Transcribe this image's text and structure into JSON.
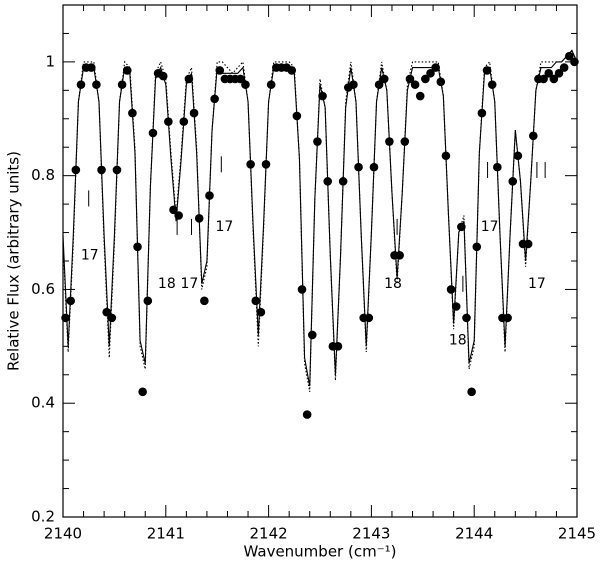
{
  "chart_data": {
    "type": "line",
    "x_label": "Wavenumber (cm⁻¹)",
    "y_label": "Relative Flux (arbitrary units)",
    "xlim": [
      2140,
      2145
    ],
    "ylim": [
      0.2,
      1.1
    ],
    "xticks": [
      2140,
      2141,
      2142,
      2143,
      2144,
      2145
    ],
    "yticks": [
      0.2,
      0.4,
      0.6,
      0.8,
      1
    ],
    "xminor_ticks": [
      2140.2,
      2140.4,
      2140.6,
      2140.8,
      2141.2,
      2141.4,
      2141.6,
      2141.8,
      2142.2,
      2142.4,
      2142.6,
      2142.8,
      2143.2,
      2143.4,
      2143.6,
      2143.8,
      2144.2,
      2144.4,
      2144.6,
      2144.8
    ],
    "yminor_ticks": [
      0.25,
      0.3,
      0.35,
      0.45,
      0.5,
      0.55,
      0.65,
      0.7,
      0.75,
      0.85,
      0.9,
      0.95,
      1.05
    ],
    "x": [
      2140,
      2140.05,
      2140.1,
      2140.15,
      2140.2,
      2140.25,
      2140.3,
      2140.35,
      2140.4,
      2140.45,
      2140.5,
      2140.55,
      2140.6,
      2140.65,
      2140.7,
      2140.75,
      2140.8,
      2140.85,
      2140.9,
      2140.95,
      2141,
      2141.05,
      2141.1,
      2141.15,
      2141.2,
      2141.25,
      2141.3,
      2141.35,
      2141.4,
      2141.45,
      2141.5,
      2141.55,
      2141.6,
      2141.65,
      2141.7,
      2141.75,
      2141.8,
      2141.85,
      2141.9,
      2141.95,
      2142,
      2142.05,
      2142.1,
      2142.15,
      2142.2,
      2142.25,
      2142.3,
      2142.35,
      2142.4,
      2142.45,
      2142.5,
      2142.55,
      2142.6,
      2142.65,
      2142.7,
      2142.75,
      2142.8,
      2142.85,
      2142.9,
      2142.95,
      2143,
      2143.05,
      2143.1,
      2143.15,
      2143.2,
      2143.25,
      2143.3,
      2143.35,
      2143.4,
      2143.45,
      2143.5,
      2143.55,
      2143.6,
      2143.65,
      2143.7,
      2143.75,
      2143.8,
      2143.85,
      2143.9,
      2143.95,
      2144,
      2144.05,
      2144.1,
      2144.15,
      2144.2,
      2144.25,
      2144.3,
      2144.35,
      2144.4,
      2144.45,
      2144.5,
      2144.55,
      2144.6,
      2144.65,
      2144.7,
      2144.75,
      2144.8,
      2144.85,
      2144.9,
      2144.95,
      2145
    ],
    "series": [
      {
        "style": "solid",
        "color": "#000000",
        "values": [
          0.695,
          0.5,
          0.695,
          0.93,
          0.99,
          0.99,
          0.99,
          0.93,
          0.695,
          0.5,
          0.695,
          0.93,
          0.99,
          0.98,
          0.84,
          0.51,
          0.47,
          0.78,
          0.97,
          0.99,
          0.96,
          0.83,
          0.72,
          0.83,
          0.96,
          0.98,
          0.84,
          0.61,
          0.65,
          0.88,
          0.99,
          0.98,
          0.98,
          0.98,
          0.98,
          0.99,
          0.93,
          0.71,
          0.52,
          0.71,
          0.93,
          0.99,
          0.99,
          0.99,
          0.99,
          0.98,
          0.83,
          0.48,
          0.43,
          0.76,
          0.96,
          0.92,
          0.66,
          0.45,
          0.66,
          0.92,
          0.99,
          0.93,
          0.7,
          0.5,
          0.7,
          0.93,
          0.99,
          0.95,
          0.77,
          0.62,
          0.77,
          0.95,
          0.99,
          0.99,
          0.99,
          0.99,
          0.99,
          0.99,
          0.94,
          0.73,
          0.54,
          0.7,
          0.72,
          0.47,
          0.51,
          0.84,
          0.98,
          0.99,
          0.93,
          0.7,
          0.5,
          0.7,
          0.88,
          0.79,
          0.65,
          0.79,
          0.95,
          0.99,
          0.99,
          0.99,
          1.0,
          1.0,
          1.01,
          1.02,
          1.0
        ]
      },
      {
        "style": "dotted",
        "color": "#000000",
        "values": [
          0.68,
          0.49,
          0.68,
          0.93,
          1.0,
          1.0,
          1.0,
          0.93,
          0.68,
          0.48,
          0.68,
          0.93,
          1.0,
          0.99,
          0.85,
          0.5,
          0.46,
          0.78,
          0.98,
          1.0,
          0.97,
          0.84,
          0.73,
          0.84,
          0.97,
          0.99,
          0.85,
          0.6,
          0.64,
          0.88,
          1.0,
          1.0,
          0.99,
          0.98,
          0.99,
          1.0,
          0.93,
          0.7,
          0.5,
          0.7,
          0.93,
          1.0,
          1.0,
          1.0,
          1.0,
          0.99,
          0.83,
          0.47,
          0.42,
          0.76,
          0.97,
          0.92,
          0.66,
          0.44,
          0.66,
          0.93,
          1.0,
          0.93,
          0.7,
          0.49,
          0.7,
          0.93,
          1.0,
          0.95,
          0.77,
          0.61,
          0.77,
          0.96,
          1.0,
          1.0,
          1.0,
          1.0,
          1.0,
          1.0,
          0.94,
          0.73,
          0.53,
          0.7,
          0.73,
          0.46,
          0.5,
          0.84,
          0.99,
          1.0,
          0.93,
          0.7,
          0.49,
          0.7,
          0.88,
          0.79,
          0.64,
          0.79,
          0.95,
          1.0,
          1.0,
          1.0,
          1.0,
          1.0,
          1.01,
          1.02,
          1.0
        ]
      }
    ],
    "points": {
      "color": "#000000",
      "x": [
        2140.025,
        2140.075,
        2140.125,
        2140.175,
        2140.225,
        2140.275,
        2140.325,
        2140.375,
        2140.425,
        2140.475,
        2140.525,
        2140.575,
        2140.625,
        2140.675,
        2140.725,
        2140.775,
        2140.825,
        2140.875,
        2140.925,
        2140.975,
        2141.025,
        2141.075,
        2141.125,
        2141.175,
        2141.225,
        2141.275,
        2141.325,
        2141.375,
        2141.425,
        2141.475,
        2141.525,
        2141.575,
        2141.625,
        2141.675,
        2141.725,
        2141.775,
        2141.825,
        2141.875,
        2141.925,
        2141.975,
        2142.025,
        2142.075,
        2142.125,
        2142.175,
        2142.225,
        2142.275,
        2142.325,
        2142.375,
        2142.425,
        2142.475,
        2142.525,
        2142.575,
        2142.625,
        2142.675,
        2142.725,
        2142.775,
        2142.825,
        2142.875,
        2142.925,
        2142.975,
        2143.025,
        2143.075,
        2143.125,
        2143.175,
        2143.225,
        2143.275,
        2143.325,
        2143.375,
        2143.425,
        2143.475,
        2143.525,
        2143.575,
        2143.625,
        2143.675,
        2143.725,
        2143.775,
        2143.825,
        2143.875,
        2143.925,
        2143.975,
        2144.025,
        2144.075,
        2144.125,
        2144.175,
        2144.225,
        2144.275,
        2144.325,
        2144.375,
        2144.425,
        2144.475,
        2144.525,
        2144.575,
        2144.625,
        2144.675,
        2144.725,
        2144.775,
        2144.825,
        2144.875,
        2144.925,
        2144.975
      ],
      "values": [
        0.55,
        0.58,
        0.81,
        0.96,
        0.99,
        0.99,
        0.96,
        0.81,
        0.56,
        0.55,
        0.81,
        0.96,
        0.985,
        0.91,
        0.675,
        0.42,
        0.58,
        0.875,
        0.98,
        0.975,
        0.895,
        0.74,
        0.73,
        0.895,
        0.97,
        0.91,
        0.725,
        0.58,
        0.765,
        0.935,
        0.985,
        0.97,
        0.97,
        0.97,
        0.97,
        0.96,
        0.82,
        0.58,
        0.56,
        0.82,
        0.96,
        0.99,
        0.99,
        0.99,
        0.985,
        0.905,
        0.6,
        0.38,
        0.52,
        0.86,
        0.94,
        0.79,
        0.5,
        0.5,
        0.79,
        0.955,
        0.96,
        0.815,
        0.55,
        0.55,
        0.815,
        0.96,
        0.97,
        0.86,
        0.66,
        0.66,
        0.86,
        0.97,
        0.96,
        0.94,
        0.97,
        0.98,
        0.99,
        0.965,
        0.835,
        0.6,
        0.57,
        0.71,
        0.55,
        0.42,
        0.675,
        0.91,
        0.985,
        0.96,
        0.815,
        0.55,
        0.55,
        0.79,
        0.835,
        0.68,
        0.68,
        0.87,
        0.97,
        0.97,
        0.98,
        0.97,
        0.98,
        0.99,
        1.01,
        1.0
      ]
    },
    "annotations": [
      {
        "text": "17",
        "x": 2140.26,
        "y": 0.66
      },
      {
        "text": "18",
        "x": 2141.01,
        "y": 0.61
      },
      {
        "text": "17",
        "x": 2141.23,
        "y": 0.61
      },
      {
        "text": "17",
        "x": 2141.57,
        "y": 0.71
      },
      {
        "text": "18",
        "x": 2143.21,
        "y": 0.61
      },
      {
        "text": "18",
        "x": 2143.84,
        "y": 0.51
      },
      {
        "text": "17",
        "x": 2144.15,
        "y": 0.71
      },
      {
        "text": "17",
        "x": 2144.61,
        "y": 0.61
      }
    ],
    "line_markers": [
      {
        "x": 2140.25,
        "y": 0.76
      },
      {
        "x": 2141.11,
        "y": 0.71
      },
      {
        "x": 2141.25,
        "y": 0.71
      },
      {
        "x": 2141.54,
        "y": 0.82
      },
      {
        "x": 2143.25,
        "y": 0.71
      },
      {
        "x": 2143.89,
        "y": 0.61
      },
      {
        "x": 2144.13,
        "y": 0.81
      },
      {
        "x": 2144.61,
        "y": 0.81
      },
      {
        "x": 2144.69,
        "y": 0.81
      }
    ]
  }
}
